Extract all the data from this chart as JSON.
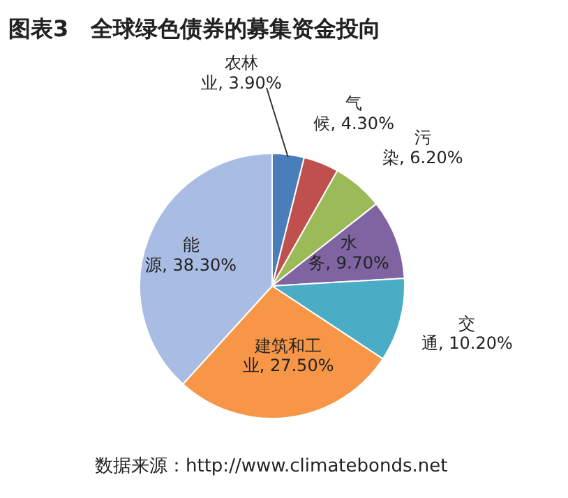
{
  "chart_data": {
    "type": "pie",
    "title": "图表3　全球绿色债券的募集资金投向",
    "categories": [
      "农林业",
      "气候",
      "污染",
      "水务",
      "交通",
      "建筑和工业",
      "能源"
    ],
    "values": [
      3.9,
      4.3,
      6.2,
      9.7,
      10.2,
      27.5,
      38.3
    ],
    "value_labels": [
      "3.90%",
      "4.30%",
      "6.20%",
      "9.70%",
      "10.20%",
      "27.50%",
      "38.30%"
    ],
    "colors": [
      "#4a7ebb",
      "#c0504d",
      "#9bbb59",
      "#8064a2",
      "#4bacc6",
      "#f79646",
      "#a9bce3"
    ],
    "legend": false,
    "annotations": [
      "数据来源：http://www.climatebonds.net"
    ]
  }
}
